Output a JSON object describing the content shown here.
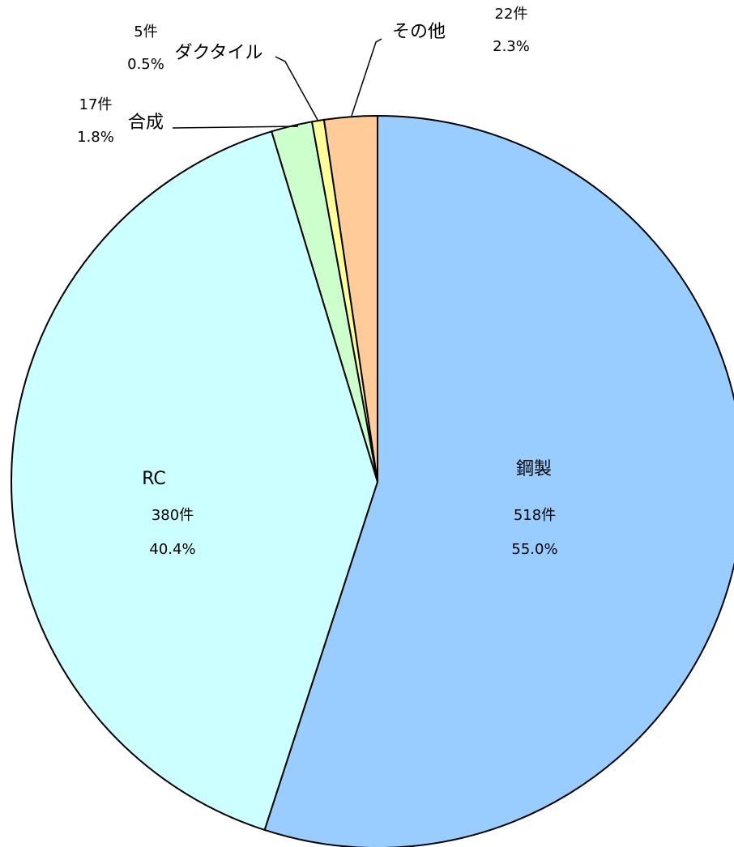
{
  "chart_data": {
    "type": "pie",
    "categories": [
      "鋼製",
      "RC",
      "合成",
      "ダクタイル",
      "その他"
    ],
    "values": [
      518,
      380,
      17,
      5,
      22
    ],
    "value_labels": [
      "518件",
      "380件",
      "17件",
      "5件",
      "22件"
    ],
    "percent_labels": [
      "55.0%",
      "40.4%",
      "1.8%",
      "0.5%",
      "2.3%"
    ],
    "colors": [
      "#99ccff",
      "#ccffff",
      "#ccffcc",
      "#ffff99",
      "#ffcc99"
    ]
  }
}
